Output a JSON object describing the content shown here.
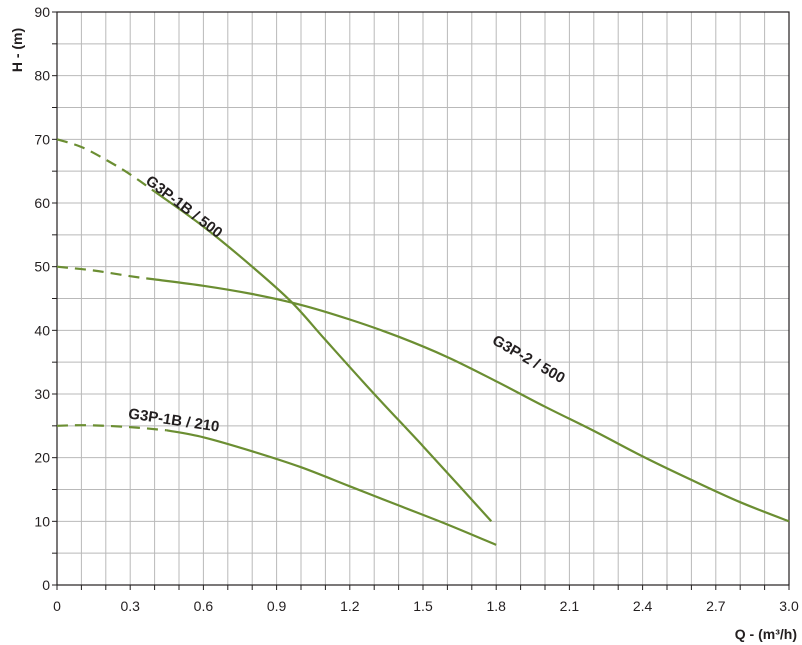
{
  "chart_data": {
    "type": "line",
    "xlabel": "Q - (m³/h)",
    "ylabel": "H - (m)",
    "xlim": [
      0,
      3.0
    ],
    "ylim": [
      0,
      90
    ],
    "x_ticks": [
      "0",
      "0.3",
      "0.6",
      "0.9",
      "1.2",
      "1.5",
      "1.8",
      "2.1",
      "2.4",
      "2.7",
      "3.0"
    ],
    "y_ticks": [
      "0",
      "10",
      "20",
      "30",
      "40",
      "50",
      "60",
      "70",
      "80",
      "90"
    ],
    "grid": true,
    "line_color": "#6b8e32",
    "series": [
      {
        "name": "G3P-1B / 500",
        "dashed_points": [
          [
            0,
            70
          ],
          [
            0.1,
            68.8
          ],
          [
            0.2,
            66.8
          ],
          [
            0.3,
            64.5
          ],
          [
            0.4,
            61.8
          ]
        ],
        "points": [
          [
            0.4,
            61.8
          ],
          [
            0.6,
            56.3
          ],
          [
            0.8,
            50
          ],
          [
            0.96,
            44.5
          ],
          [
            1.1,
            38.5
          ],
          [
            1.3,
            30
          ],
          [
            1.5,
            21.8
          ],
          [
            1.65,
            15.5
          ],
          [
            1.78,
            10
          ]
        ]
      },
      {
        "name": "G3P-2 / 500",
        "dashed_points": [
          [
            0,
            50
          ],
          [
            0.15,
            49.4
          ],
          [
            0.3,
            48.5
          ],
          [
            0.4,
            48
          ]
        ],
        "points": [
          [
            0.4,
            48
          ],
          [
            0.6,
            47
          ],
          [
            0.8,
            45.7
          ],
          [
            1.0,
            44
          ],
          [
            1.2,
            41.7
          ],
          [
            1.4,
            39
          ],
          [
            1.6,
            35.8
          ],
          [
            1.8,
            32
          ],
          [
            2.0,
            28
          ],
          [
            2.2,
            24.2
          ],
          [
            2.4,
            20.2
          ],
          [
            2.6,
            16.5
          ],
          [
            2.8,
            13
          ],
          [
            3.0,
            10
          ]
        ]
      },
      {
        "name": "G3P-1B / 210",
        "dashed_points": [
          [
            0,
            25
          ],
          [
            0.12,
            25.1
          ],
          [
            0.3,
            24.8
          ],
          [
            0.45,
            24.3
          ]
        ],
        "points": [
          [
            0.45,
            24.3
          ],
          [
            0.6,
            23.2
          ],
          [
            0.8,
            21
          ],
          [
            1.0,
            18.5
          ],
          [
            1.2,
            15.5
          ],
          [
            1.4,
            12.5
          ],
          [
            1.6,
            9.5
          ],
          [
            1.8,
            6.3
          ]
        ]
      }
    ]
  }
}
